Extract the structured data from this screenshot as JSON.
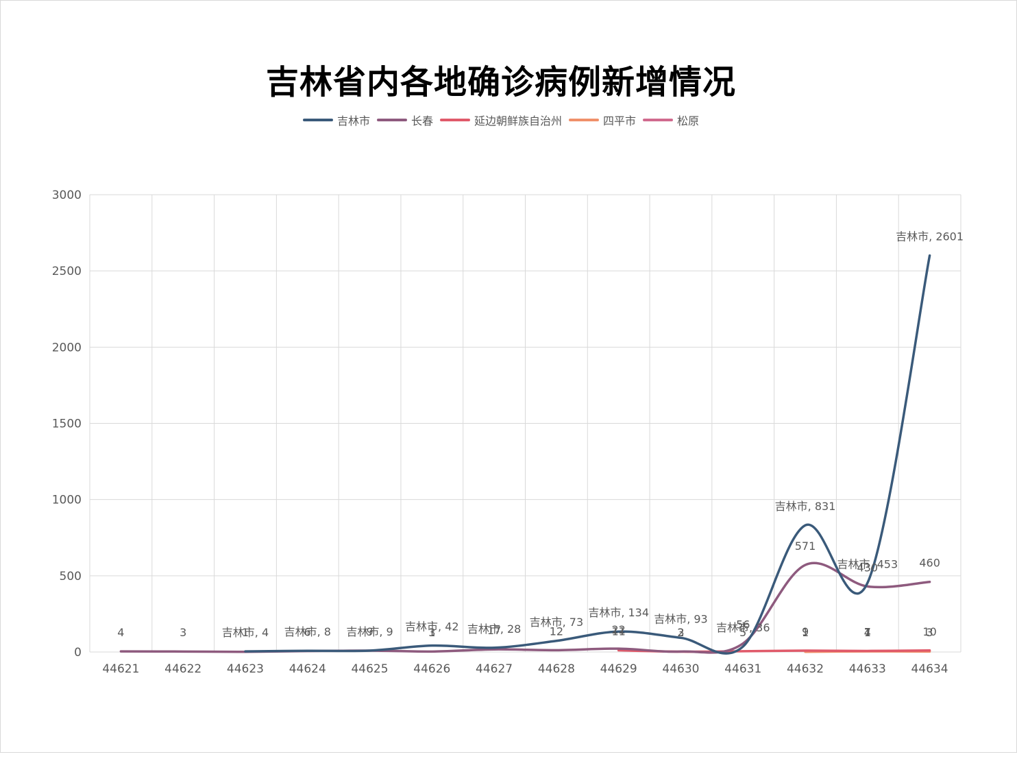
{
  "chart_data": {
    "type": "line",
    "title": "吉林省内各地确诊病例新增情况",
    "xlabel": "",
    "ylabel": "",
    "ylim": [
      0,
      3000
    ],
    "yticks": [
      0,
      500,
      1000,
      1500,
      2000,
      2500,
      3000
    ],
    "grid": true,
    "legend_position": "top",
    "smooth": true,
    "categories": [
      "44621",
      "44622",
      "44623",
      "44624",
      "44625",
      "44626",
      "44627",
      "44628",
      "44629",
      "44630",
      "44631",
      "44632",
      "44633",
      "44634"
    ],
    "series": [
      {
        "name": "吉林市",
        "color": "#3a5a7a",
        "values": [
          null,
          null,
          4,
          8,
          9,
          42,
          28,
          73,
          134,
          93,
          36,
          831,
          453,
          2601
        ],
        "labels_with_name": true
      },
      {
        "name": "长春",
        "color": "#8e5a7e",
        "values": [
          4,
          3,
          1,
          6,
          9,
          3,
          17,
          12,
          22,
          3,
          56,
          571,
          430,
          460
        ],
        "labels_with_name": false
      },
      {
        "name": "延边朝鲜族自治州",
        "color": "#e05a6a",
        "values": [
          null,
          null,
          null,
          null,
          null,
          null,
          null,
          null,
          11,
          2,
          5,
          9,
          7,
          10
        ],
        "labels_with_name": false
      },
      {
        "name": "四平市",
        "color": "#f0906a",
        "values": [
          null,
          null,
          null,
          null,
          null,
          null,
          null,
          null,
          null,
          null,
          null,
          1,
          4,
          3
        ],
        "labels_with_name": false
      },
      {
        "name": "松原",
        "color": "#d06a8e",
        "values": [
          null,
          null,
          null,
          null,
          null,
          1,
          null,
          null,
          null,
          null,
          null,
          null,
          1,
          null
        ],
        "labels_with_name": false
      }
    ]
  }
}
